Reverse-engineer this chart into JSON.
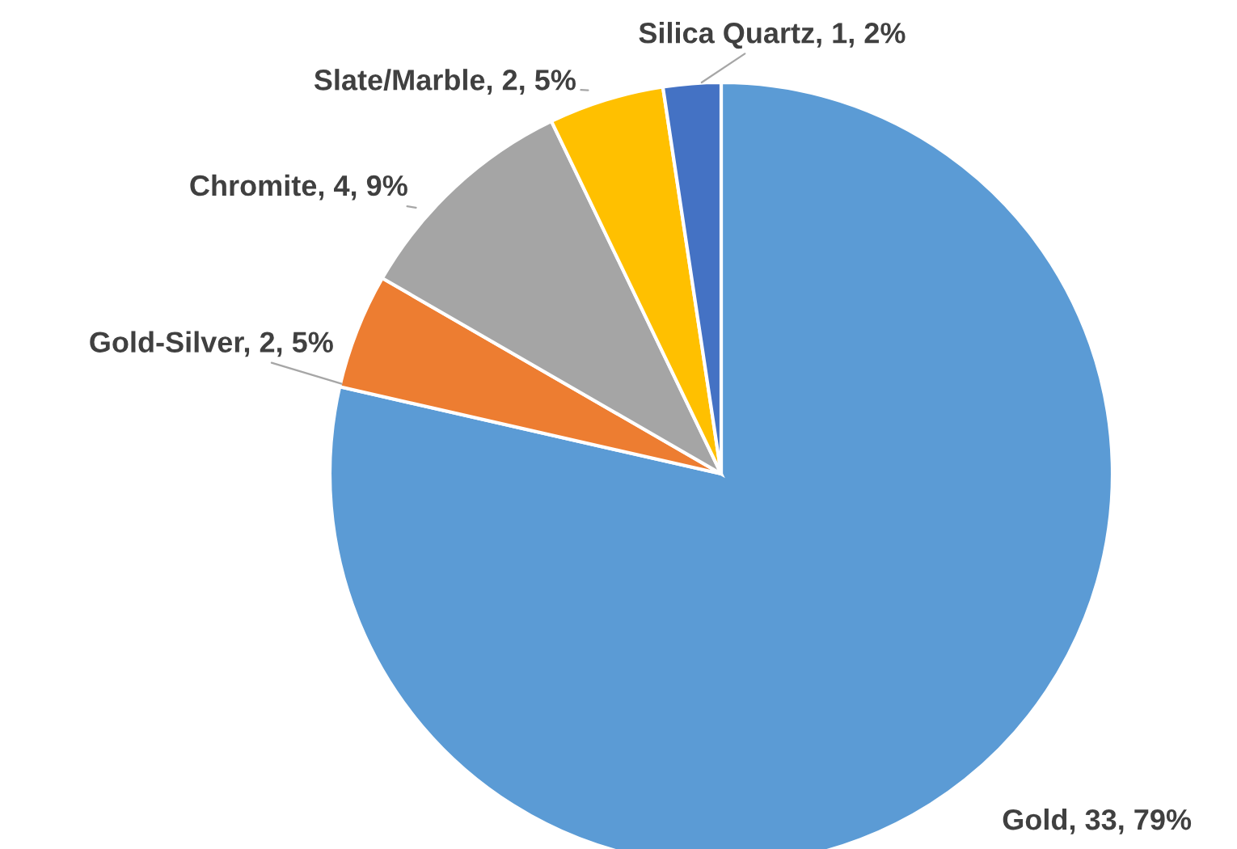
{
  "chart_data": {
    "type": "pie",
    "categories": [
      "Gold, 33, 79%",
      "Gold-Silver, 2, 5%",
      "Chromite, 4, 9%",
      "Slate/Marble, 2, 5%",
      "Silica Quartz, 1, 2%"
    ],
    "values": [
      33,
      2,
      4,
      2,
      1
    ],
    "colors": [
      "#5b9bd5",
      "#ed7d31",
      "#a5a5a5",
      "#ffc000",
      "#4472c4"
    ],
    "legend": false
  }
}
